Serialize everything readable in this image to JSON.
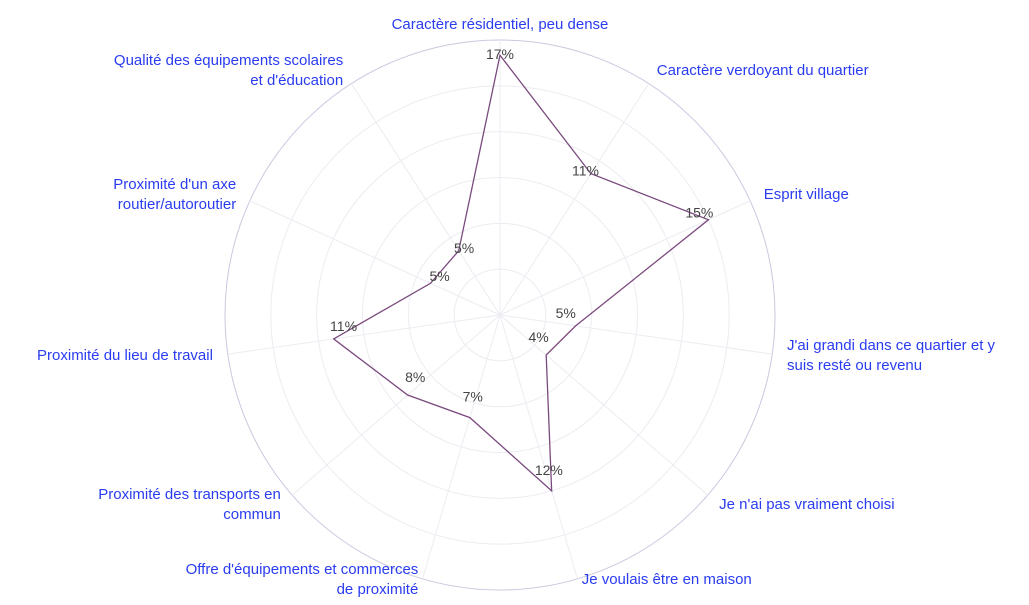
{
  "chart_data": {
    "type": "radar",
    "categories": [
      "Caractère résidentiel, peu dense",
      "Caractère verdoyant du quartier",
      "Esprit village",
      "J'ai grandi dans ce quartier et y\nsuis resté ou revenu",
      "Je n'ai pas vraiment choisi",
      "Je voulais être en maison",
      "Offre d'équipements et commerces\nde proximité",
      "Proximité des transports en\ncommun",
      "Proximité du lieu de travail",
      "Proximité d'un axe\nroutier/autoroutier",
      "Qualité des équipements scolaires\net d'éducation"
    ],
    "values": [
      17,
      11,
      15,
      5,
      4,
      12,
      7,
      8,
      11,
      5,
      5
    ],
    "value_labels": [
      "17%",
      "11%",
      "15%",
      "5%",
      "4%",
      "12%",
      "7%",
      "8%",
      "11%",
      "5%",
      "5%"
    ],
    "color": "#7a4a7e",
    "rlim": [
      0,
      18
    ]
  }
}
